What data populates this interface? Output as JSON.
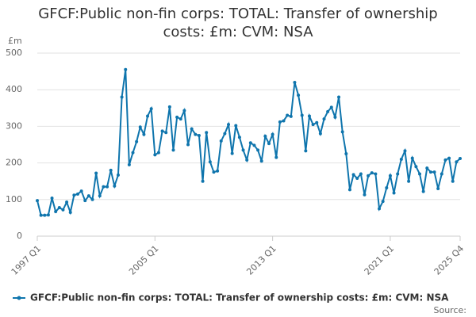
{
  "chart_data": {
    "type": "line",
    "title": "GFCF:Public non-fin corps: TOTAL: Transfer of ownership costs: £m: CVM: NSA",
    "y_label": "£m",
    "source": "Source:",
    "categories": [
      "1997 Q1",
      null,
      null,
      null,
      null,
      null,
      null,
      null,
      null,
      null,
      null,
      null,
      null,
      null,
      null,
      null,
      null,
      null,
      null,
      null,
      null,
      null,
      null,
      null,
      null,
      null,
      null,
      null,
      null,
      null,
      null,
      null,
      "2005 Q1",
      null,
      null,
      null,
      null,
      null,
      null,
      null,
      null,
      null,
      null,
      null,
      null,
      null,
      null,
      null,
      null,
      null,
      null,
      null,
      null,
      null,
      null,
      null,
      null,
      null,
      null,
      null,
      null,
      null,
      null,
      null,
      "2013 Q1",
      null,
      null,
      null,
      null,
      null,
      null,
      null,
      null,
      null,
      null,
      null,
      null,
      null,
      null,
      null,
      null,
      null,
      null,
      null,
      null,
      null,
      null,
      null,
      null,
      null,
      null,
      null,
      null,
      null,
      null,
      null,
      "2021 Q1",
      null,
      null,
      null,
      null,
      null,
      null,
      null,
      null,
      null,
      null,
      null,
      null,
      null,
      null,
      null,
      null,
      null,
      null,
      "2025 Q4"
    ],
    "series": [
      {
        "name": "GFCF:Public non-fin corps: TOTAL: Transfer of ownership costs: £m: CVM: NSA",
        "color": "#0f75ad",
        "values": [
          97,
          57,
          57,
          58,
          104,
          67,
          78,
          72,
          93,
          65,
          112,
          115,
          123,
          97,
          110,
          100,
          172,
          110,
          135,
          135,
          180,
          137,
          167,
          380,
          455,
          195,
          228,
          258,
          298,
          278,
          328,
          348,
          222,
          228,
          287,
          283,
          353,
          235,
          325,
          320,
          343,
          250,
          293,
          278,
          275,
          150,
          283,
          203,
          175,
          178,
          260,
          280,
          305,
          226,
          302,
          270,
          235,
          208,
          255,
          248,
          235,
          205,
          273,
          253,
          278,
          215,
          312,
          315,
          330,
          327,
          420,
          385,
          330,
          233,
          328,
          305,
          310,
          280,
          320,
          340,
          352,
          325,
          380,
          285,
          225,
          127,
          168,
          158,
          170,
          113,
          165,
          173,
          170,
          75,
          95,
          132,
          165,
          118,
          170,
          210,
          233,
          150,
          213,
          190,
          170,
          122,
          186,
          175,
          175,
          130,
          170,
          208,
          213,
          150,
          203,
          212
        ]
      }
    ],
    "ylim": [
      0,
      500
    ],
    "yticks": [
      0,
      100,
      200,
      300,
      400,
      500
    ],
    "grid": true
  }
}
